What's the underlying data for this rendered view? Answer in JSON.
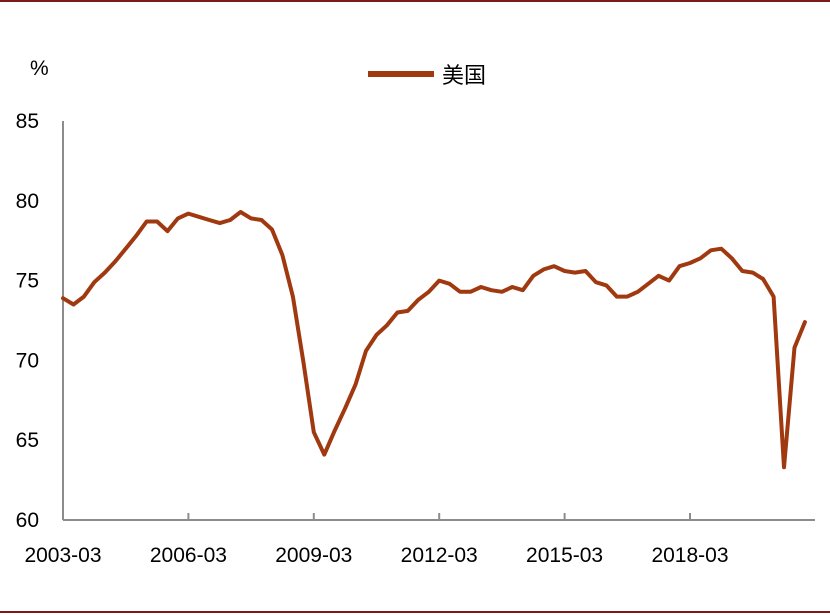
{
  "chart_data": {
    "type": "line",
    "unit_label": "%",
    "x_tick_labels": [
      "2003-03",
      "2006-03",
      "2009-03",
      "2012-03",
      "2015-03",
      "2018-03"
    ],
    "ylim": [
      60,
      85
    ],
    "yticks": [
      60,
      65,
      70,
      75,
      80,
      85
    ],
    "legend_position": "top-center",
    "grid": false,
    "series": [
      {
        "name": "美国",
        "color": "#a0390f",
        "x": [
          "2003-03",
          "2003-06",
          "2003-09",
          "2003-12",
          "2004-03",
          "2004-06",
          "2004-09",
          "2004-12",
          "2005-03",
          "2005-06",
          "2005-09",
          "2005-12",
          "2006-03",
          "2006-06",
          "2006-09",
          "2006-12",
          "2007-03",
          "2007-06",
          "2007-09",
          "2007-12",
          "2008-03",
          "2008-06",
          "2008-09",
          "2008-12",
          "2009-03",
          "2009-06",
          "2009-09",
          "2009-12",
          "2010-03",
          "2010-06",
          "2010-09",
          "2010-12",
          "2011-03",
          "2011-06",
          "2011-09",
          "2011-12",
          "2012-03",
          "2012-06",
          "2012-09",
          "2012-12",
          "2013-03",
          "2013-06",
          "2013-09",
          "2013-12",
          "2014-03",
          "2014-06",
          "2014-09",
          "2014-12",
          "2015-03",
          "2015-06",
          "2015-09",
          "2015-12",
          "2016-03",
          "2016-06",
          "2016-09",
          "2016-12",
          "2017-03",
          "2017-06",
          "2017-09",
          "2017-12",
          "2018-03",
          "2018-06",
          "2018-09",
          "2018-12",
          "2019-03",
          "2019-06",
          "2019-09",
          "2019-12",
          "2020-03",
          "2020-06",
          "2020-09",
          "2020-12"
        ],
        "values": [
          73.9,
          73.5,
          74.0,
          74.9,
          75.5,
          76.2,
          77.0,
          77.8,
          78.7,
          78.7,
          78.1,
          78.9,
          79.2,
          79.0,
          78.8,
          78.6,
          78.8,
          79.3,
          78.9,
          78.8,
          78.2,
          76.6,
          74.0,
          69.9,
          65.5,
          64.1,
          65.6,
          67.0,
          68.5,
          70.6,
          71.6,
          72.2,
          73.0,
          73.1,
          73.8,
          74.3,
          75.0,
          74.8,
          74.3,
          74.3,
          74.6,
          74.4,
          74.3,
          74.6,
          74.4,
          75.3,
          75.7,
          75.9,
          75.6,
          75.5,
          75.6,
          74.9,
          74.7,
          74.0,
          74.0,
          74.3,
          74.8,
          75.3,
          75.0,
          75.9,
          76.1,
          76.4,
          76.9,
          77.0,
          76.4,
          75.6,
          75.5,
          75.1,
          74.0,
          63.3,
          70.8,
          72.4
        ]
      }
    ]
  }
}
